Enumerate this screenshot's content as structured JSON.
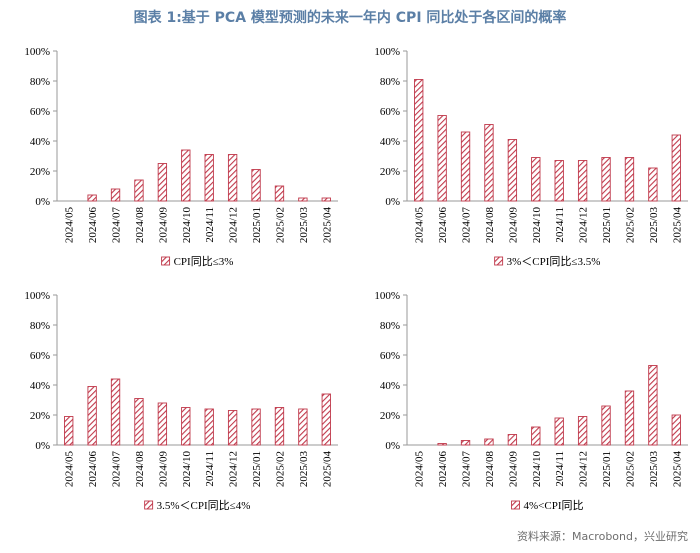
{
  "title": "图表 1:基于 PCA 模型预测的未来一年内 CPI 同比处于各区间的概率",
  "source": "资料来源：Macrobond，兴业研究",
  "colors": {
    "bar": "#c0394b",
    "title": "#5b7fa6",
    "axis": "#999999"
  },
  "chart_data": [
    {
      "type": "bar",
      "legend": "CPI同比≤3%",
      "categories": [
        "2024/05",
        "2024/06",
        "2024/07",
        "2024/08",
        "2024/09",
        "2024/10",
        "2024/11",
        "2024/12",
        "2025/01",
        "2025/02",
        "2025/03",
        "2025/04"
      ],
      "values": [
        0,
        4,
        8,
        14,
        25,
        34,
        31,
        31,
        21,
        10,
        2,
        2
      ],
      "ylim": [
        0,
        100
      ],
      "yticks": [
        "0%",
        "20%",
        "40%",
        "60%",
        "80%",
        "100%"
      ]
    },
    {
      "type": "bar",
      "legend": "3%＜CPI同比≤3.5%",
      "categories": [
        "2024/05",
        "2024/06",
        "2024/07",
        "2024/08",
        "2024/09",
        "2024/10",
        "2024/11",
        "2024/12",
        "2025/01",
        "2025/02",
        "2025/03",
        "2025/04"
      ],
      "values": [
        81,
        57,
        46,
        51,
        41,
        29,
        27,
        27,
        29,
        29,
        22,
        44
      ],
      "ylim": [
        0,
        100
      ],
      "yticks": [
        "0%",
        "20%",
        "40%",
        "60%",
        "80%",
        "100%"
      ]
    },
    {
      "type": "bar",
      "legend": "3.5%＜CPI同比≤4%",
      "categories": [
        "2024/05",
        "2024/06",
        "2024/07",
        "2024/08",
        "2024/09",
        "2024/10",
        "2024/11",
        "2024/12",
        "2025/01",
        "2025/02",
        "2025/03",
        "2025/04"
      ],
      "values": [
        19,
        39,
        44,
        31,
        28,
        25,
        24,
        23,
        24,
        25,
        24,
        34
      ],
      "ylim": [
        0,
        100
      ],
      "yticks": [
        "0%",
        "20%",
        "40%",
        "60%",
        "80%",
        "100%"
      ]
    },
    {
      "type": "bar",
      "legend": "4%<CPI同比",
      "categories": [
        "2024/05",
        "2024/06",
        "2024/07",
        "2024/08",
        "2024/09",
        "2024/10",
        "2024/11",
        "2024/12",
        "2025/01",
        "2025/02",
        "2025/03",
        "2025/04"
      ],
      "values": [
        0,
        1,
        3,
        4,
        7,
        12,
        18,
        19,
        26,
        36,
        53,
        20
      ],
      "ylim": [
        0,
        100
      ],
      "yticks": [
        "0%",
        "20%",
        "40%",
        "60%",
        "80%",
        "100%"
      ]
    }
  ]
}
